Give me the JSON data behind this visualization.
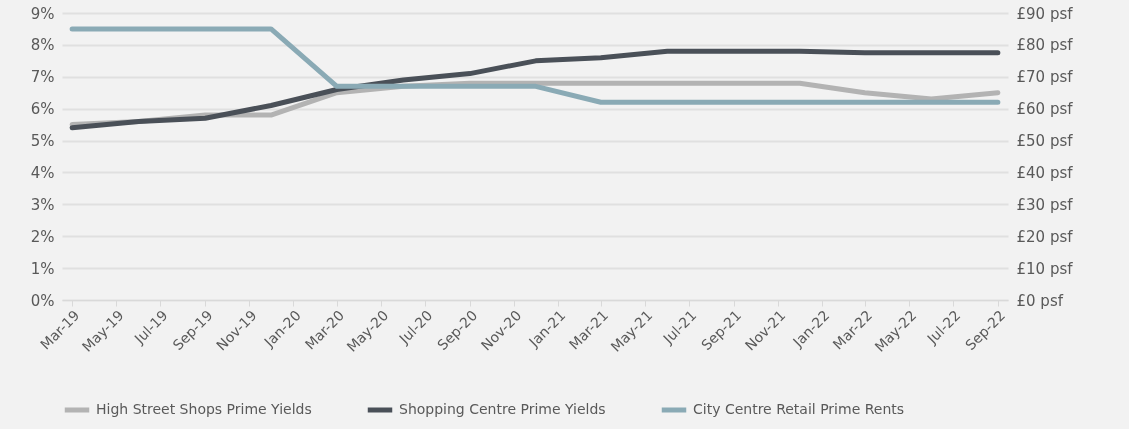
{
  "chart_data": {
    "type": "line",
    "x": [
      "2019-03",
      "2019-06",
      "2019-09",
      "2019-12",
      "2020-03",
      "2020-06",
      "2020-09",
      "2020-12",
      "2021-03",
      "2021-06",
      "2021-09",
      "2021-12",
      "2022-03",
      "2022-06",
      "2022-09"
    ],
    "series": [
      {
        "name": "High Street Shops Prime Yields",
        "color": "#b3b3b3",
        "values": [
          5.5,
          5.6,
          5.8,
          5.8,
          6.5,
          6.7,
          6.8,
          6.8,
          6.8,
          6.8,
          6.8,
          6.8,
          6.5,
          6.3,
          6.5
        ]
      },
      {
        "name": "Shopping Centre Prime Yields",
        "color": "#4a5058",
        "values": [
          5.4,
          5.6,
          5.7,
          6.1,
          6.6,
          6.9,
          7.1,
          7.5,
          7.6,
          7.8,
          7.8,
          7.8,
          7.75,
          7.75,
          7.75
        ]
      },
      {
        "name": "City Centre Retail Prime Rents",
        "color": "#8aaab5",
        "axis": "y2",
        "values": [
          85,
          85,
          85,
          85,
          67,
          67,
          67,
          67,
          62,
          62,
          62,
          62,
          62,
          62,
          62
        ]
      }
    ],
    "xlim": [
      "2019-02-15",
      "2022-09-15"
    ],
    "xticks": [
      {
        "value": "2019-03",
        "label": "Mar-19"
      },
      {
        "value": "2019-05",
        "label": "May-19"
      },
      {
        "value": "2019-07",
        "label": "Jul-19"
      },
      {
        "value": "2019-09",
        "label": "Sep-19"
      },
      {
        "value": "2019-11",
        "label": "Nov-19"
      },
      {
        "value": "2020-01",
        "label": "Jan-20"
      },
      {
        "value": "2020-03",
        "label": "Mar-20"
      },
      {
        "value": "2020-05",
        "label": "May-20"
      },
      {
        "value": "2020-07",
        "label": "Jul-20"
      },
      {
        "value": "2020-09",
        "label": "Sep-20"
      },
      {
        "value": "2020-11",
        "label": "Nov-20"
      },
      {
        "value": "2021-01",
        "label": "Jan-21"
      },
      {
        "value": "2021-03",
        "label": "Mar-21"
      },
      {
        "value": "2021-05",
        "label": "May-21"
      },
      {
        "value": "2021-07",
        "label": "Jul-21"
      },
      {
        "value": "2021-09",
        "label": "Sep-21"
      },
      {
        "value": "2021-11",
        "label": "Nov-21"
      },
      {
        "value": "2022-01",
        "label": "Jan-22"
      },
      {
        "value": "2022-03",
        "label": "Mar-22"
      },
      {
        "value": "2022-05",
        "label": "May-22"
      },
      {
        "value": "2022-07",
        "label": "Jul-22"
      },
      {
        "value": "2022-09",
        "label": "Sep-22"
      }
    ],
    "ylim": [
      0,
      9
    ],
    "yticks": [
      {
        "value": 0,
        "label": "0%"
      },
      {
        "value": 1,
        "label": "1%"
      },
      {
        "value": 2,
        "label": "2%"
      },
      {
        "value": 3,
        "label": "3%"
      },
      {
        "value": 4,
        "label": "4%"
      },
      {
        "value": 5,
        "label": "5%"
      },
      {
        "value": 6,
        "label": "6%"
      },
      {
        "value": 7,
        "label": "7%"
      },
      {
        "value": 8,
        "label": "8%"
      },
      {
        "value": 9,
        "label": "9%"
      }
    ],
    "y2lim": [
      0,
      90
    ],
    "y2ticks": [
      {
        "value": 0,
        "label": "£0 psf"
      },
      {
        "value": 10,
        "label": "£10 psf"
      },
      {
        "value": 20,
        "label": "£20 psf"
      },
      {
        "value": 30,
        "label": "£30 psf"
      },
      {
        "value": 40,
        "label": "£40 psf"
      },
      {
        "value": 50,
        "label": "£50 psf"
      },
      {
        "value": 60,
        "label": "£60 psf"
      },
      {
        "value": 70,
        "label": "£70 psf"
      },
      {
        "value": 80,
        "label": "£80 psf"
      },
      {
        "value": 90,
        "label": "£90 psf"
      }
    ],
    "grid": "y",
    "legend": "bottom"
  }
}
